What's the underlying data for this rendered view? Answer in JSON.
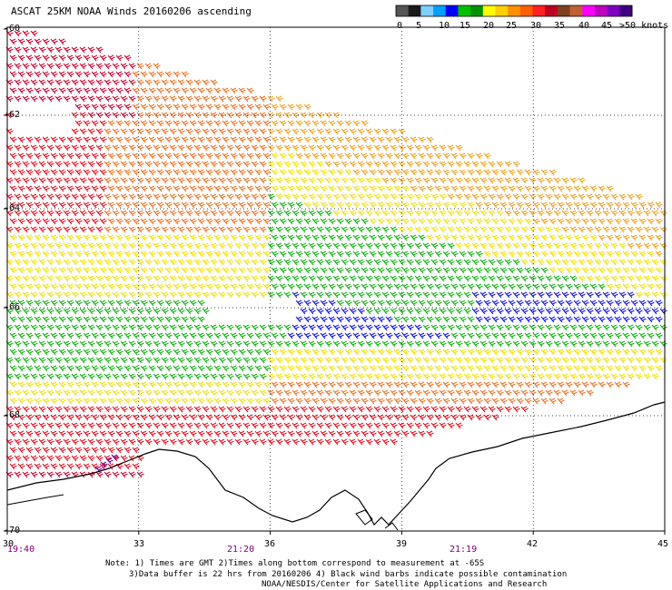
{
  "title": "ASCAT 25KM NOAA Winds 20160206 ascending",
  "legend": {
    "colors": [
      "#555555",
      "#1a1a1a",
      "#7fcfff",
      "#00a0ff",
      "#0000ff",
      "#00c000",
      "#009000",
      "#ffff00",
      "#ffd000",
      "#ff9000",
      "#ff6000",
      "#ff2020",
      "#c00020",
      "#804020",
      "#c06030",
      "#ff00ff",
      "#c000c0",
      "#8000c0",
      "#400080"
    ],
    "labels": [
      "0",
      "5",
      "10",
      "15",
      "20",
      "25",
      "30",
      "35",
      "40",
      "45",
      ">50 knots"
    ]
  },
  "map": {
    "lon_ticks": [
      "30",
      "33",
      "36",
      "39",
      "42",
      "45"
    ],
    "lat_ticks": [
      "-60",
      "-62",
      "-64",
      "-66",
      "-68",
      "-70"
    ],
    "lon_range": [
      30,
      45
    ],
    "lat_range": [
      -70,
      -60
    ],
    "times": [
      "19:40",
      "21:20",
      "21:19"
    ],
    "grid": "dotted"
  },
  "notes": [
    "Note: 1) Times are GMT 2)Times along bottom correspond to measurement at -65S",
    "3)Data buffer is 22 hrs from 20160206 4) Black wind barbs indicate possible contamination",
    "NOAA/NESDIS/Center for Satellite Applications and Research"
  ]
}
